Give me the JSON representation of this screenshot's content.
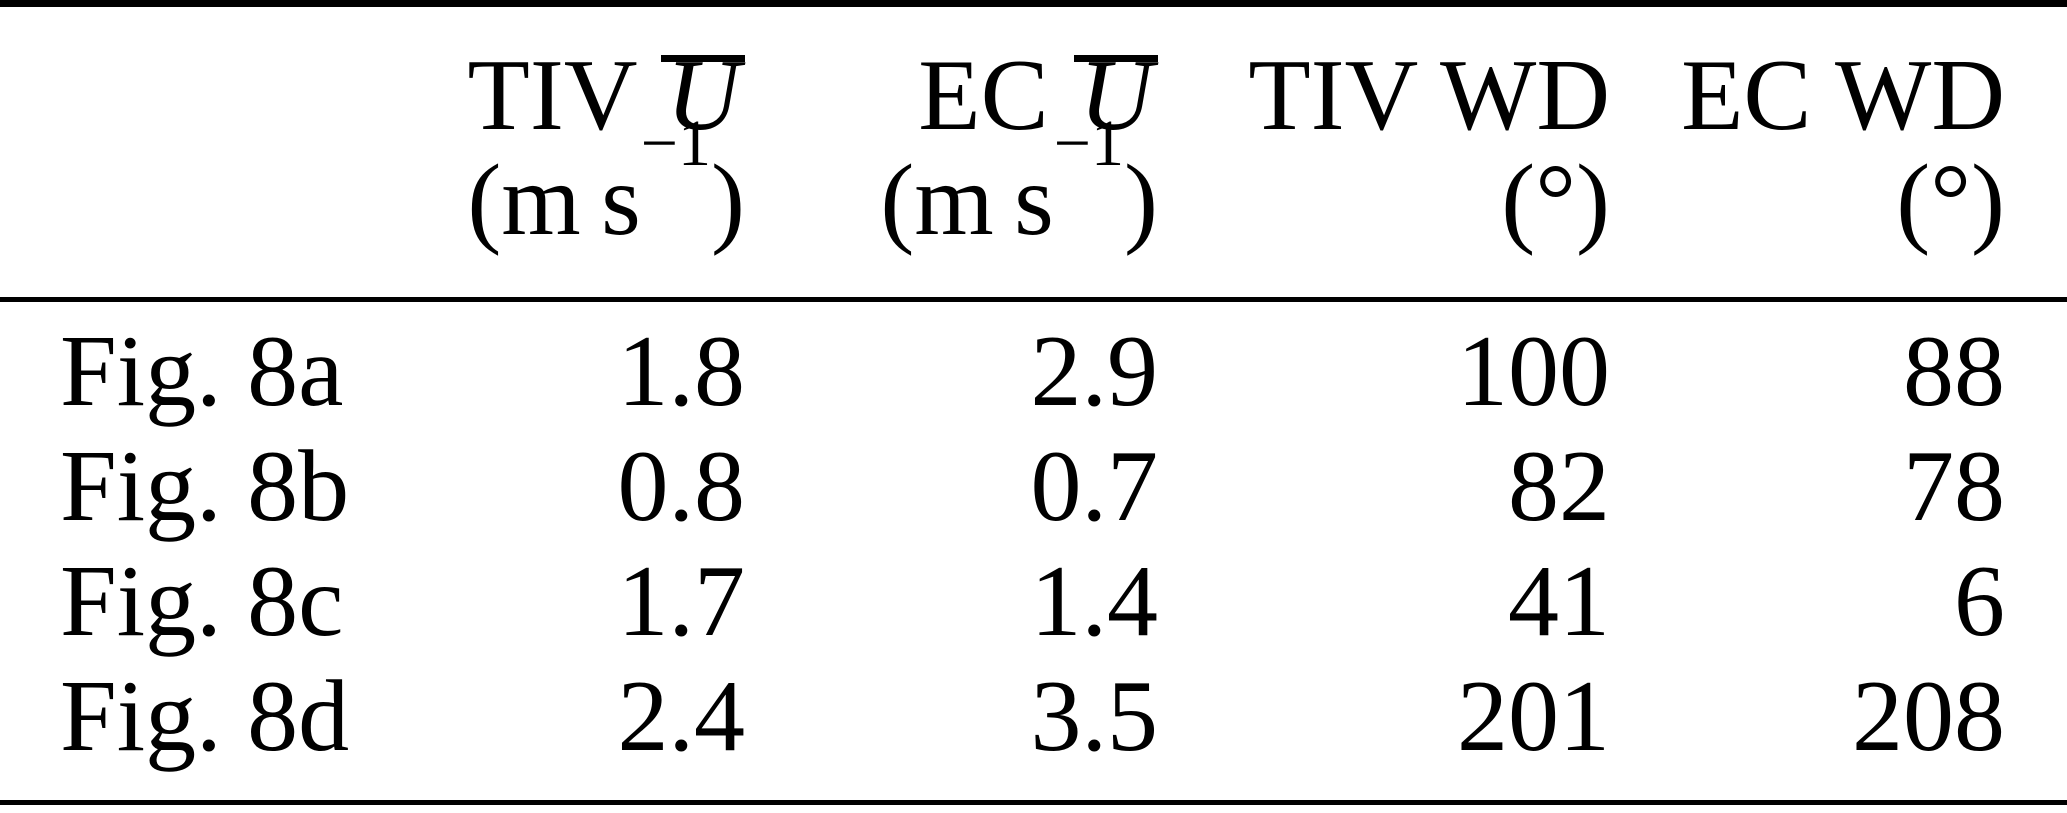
{
  "table": {
    "header": {
      "col_speed_tiv": {
        "prefix": "TIV",
        "symbol": "U"
      },
      "col_speed_ec": {
        "prefix": "EC",
        "symbol": "U"
      },
      "col_wd_tiv": {
        "label": "TIV WD"
      },
      "col_wd_ec": {
        "label": "EC WD"
      },
      "unit_speed": {
        "open": "(m s",
        "sup": "−1",
        "close": ")"
      },
      "unit_degrees": "(°)"
    },
    "rows": [
      {
        "label": "Fig. 8a",
        "tiv_u": "1.8",
        "ec_u": "2.9",
        "tiv_wd": "100",
        "ec_wd": "88"
      },
      {
        "label": "Fig. 8b",
        "tiv_u": "0.8",
        "ec_u": "0.7",
        "tiv_wd": "82",
        "ec_wd": "78"
      },
      {
        "label": "Fig. 8c",
        "tiv_u": "1.7",
        "ec_u": "1.4",
        "tiv_wd": "41",
        "ec_wd": "6"
      },
      {
        "label": "Fig. 8d",
        "tiv_u": "2.4",
        "ec_u": "3.5",
        "tiv_wd": "201",
        "ec_wd": "208"
      }
    ]
  },
  "chart_data": {
    "type": "table",
    "columns": [
      "",
      "TIV Ū (m s⁻¹)",
      "EC Ū (m s⁻¹)",
      "TIV WD (°)",
      "EC WD (°)"
    ],
    "rows": [
      [
        "Fig. 8a",
        1.8,
        2.9,
        100,
        88
      ],
      [
        "Fig. 8b",
        0.8,
        0.7,
        82,
        78
      ],
      [
        "Fig. 8c",
        1.7,
        1.4,
        41,
        6
      ],
      [
        "Fig. 8d",
        2.4,
        3.5,
        201,
        208
      ]
    ]
  }
}
